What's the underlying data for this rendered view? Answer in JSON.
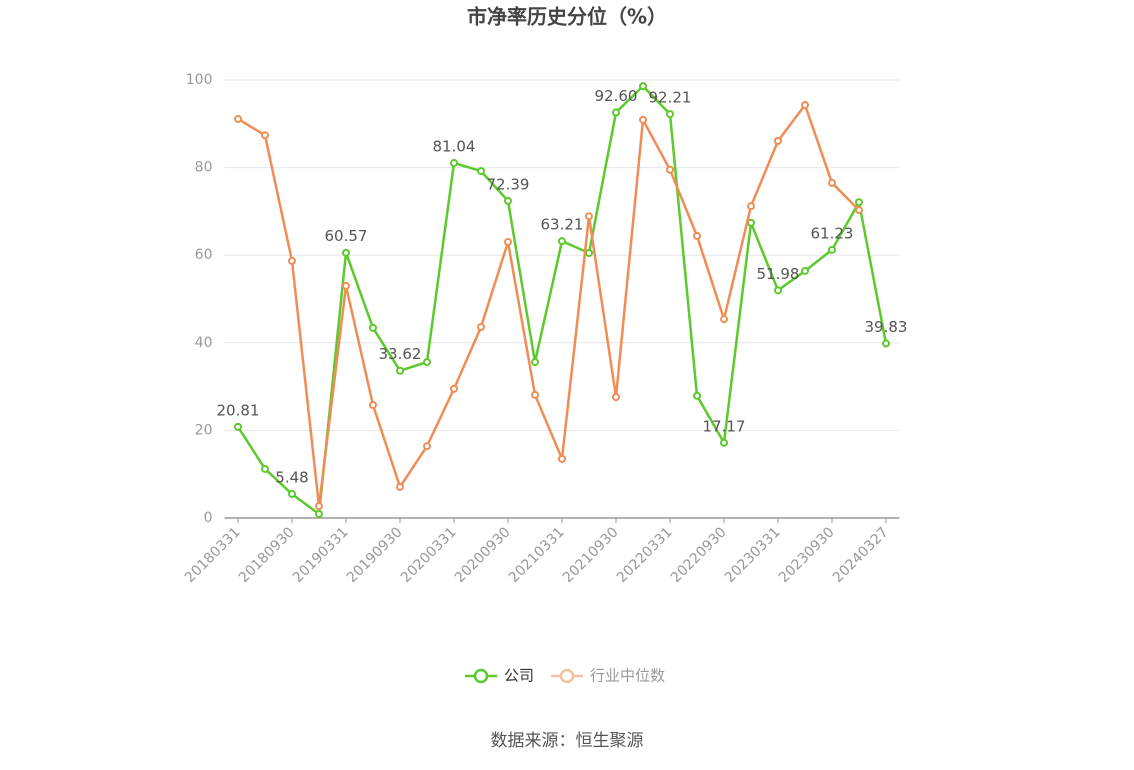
{
  "chart_data": {
    "type": "line",
    "title": "市净率历史分位（%）",
    "source": "数据来源：恒生聚源",
    "categories": [
      "20180331",
      null,
      "20180930",
      null,
      "20190331",
      null,
      "20190930",
      null,
      "20200331",
      null,
      "20200930",
      null,
      "20210331",
      null,
      "20210930",
      null,
      "20220331",
      null,
      "20220930",
      null,
      "20230331",
      null,
      "20230930",
      null,
      "20240327"
    ],
    "series": [
      {
        "name": "公司",
        "color": "#5cc92c",
        "values": [
          20.81,
          11.2,
          5.48,
          0.9,
          60.57,
          43.4,
          33.62,
          35.6,
          81.04,
          79.2,
          72.39,
          35.6,
          63.21,
          60.5,
          92.6,
          98.6,
          92.21,
          27.9,
          17.17,
          67.4,
          51.98,
          56.4,
          61.23,
          72.1,
          39.83
        ],
        "value_labels": [
          "20.81",
          null,
          "5.48",
          null,
          "60.57",
          null,
          "33.62",
          null,
          "81.04",
          null,
          "72.39",
          null,
          "63.21",
          null,
          "92.60",
          null,
          "92.21",
          null,
          "17.17",
          null,
          "51.98",
          null,
          "61.23",
          null,
          "39.83"
        ]
      },
      {
        "name": "行业中位数",
        "color": "#f08c55",
        "values": [
          91.1,
          87.4,
          58.7,
          2.7,
          53.0,
          25.8,
          7.1,
          16.4,
          29.5,
          43.6,
          63.0,
          28.1,
          13.5,
          68.9,
          27.6,
          90.9,
          79.5,
          64.4,
          45.4,
          71.2,
          86.1,
          94.3,
          76.5,
          70.3,
          null
        ]
      }
    ],
    "ylim": [
      0,
      100
    ],
    "yticks": [
      0,
      20,
      40,
      60,
      80,
      100
    ],
    "grid": true
  }
}
